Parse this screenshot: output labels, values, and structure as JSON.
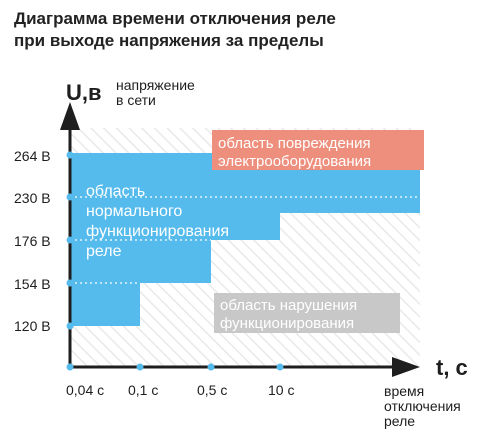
{
  "title": {
    "line1": "Диаграмма времени отключения реле",
    "line2": "при выходе напряжения за пределы"
  },
  "colors": {
    "normal": "#55bbec",
    "damage": "#ee8f7d",
    "disruption": "#c8c8c8",
    "axis": "#1e1e1e",
    "hatch": "#eeeeee",
    "dot": "#55bbec"
  },
  "chart_data": {
    "type": "area",
    "y_axis": {
      "symbol": "U,в",
      "caption": [
        "напряжение",
        "в сети"
      ],
      "ticks": [
        "120 В",
        "154 В",
        "176 В",
        "230 В",
        "264 В"
      ]
    },
    "x_axis": {
      "symbol": "t, с",
      "caption": [
        "время",
        "отключения",
        "реле"
      ],
      "ticks": [
        "0,04 с",
        "0,1 с",
        "0,5 с",
        "10 с"
      ]
    },
    "regions": [
      {
        "name": "normal",
        "label": [
          "область",
          "нормального",
          "функционирования",
          "реле"
        ]
      },
      {
        "name": "damage",
        "label": [
          "область повреждения",
          "электрооборудования"
        ]
      },
      {
        "name": "disruption",
        "label": [
          "область нарушения",
          "функционирования"
        ]
      }
    ],
    "trip_steps": [
      {
        "time": "0,04 с",
        "low": "120 В",
        "high": "264 В"
      },
      {
        "time": "0,1 с",
        "low": "154 В",
        "high": "264 В"
      },
      {
        "time": "0,5 с",
        "low": "176 В",
        "high": "264 В"
      },
      {
        "time": "10 с",
        "low": "176 В",
        "high": "230 В"
      }
    ]
  }
}
